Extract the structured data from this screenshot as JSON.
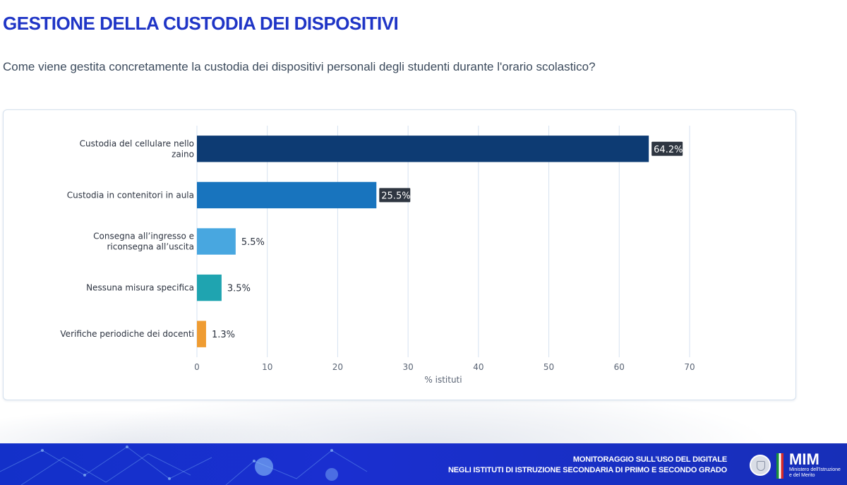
{
  "header": {
    "title": "GESTIONE DELLA CUSTODIA DEI DISPOSITIVI",
    "subtitle": "Come viene gestita concretamente la custodia dei dispositivi personali degli studenti durante l'orario scolastico?"
  },
  "chart_data": {
    "type": "bar",
    "orientation": "horizontal",
    "categories": [
      [
        "Custodia del cellulare nello",
        "zaino"
      ],
      [
        "Custodia in contenitori in aula"
      ],
      [
        "Consegna all’ingresso e",
        "riconsegna all’uscita"
      ],
      [
        "Nessuna misura specifica"
      ],
      [
        "Verifiche periodiche dei docenti"
      ]
    ],
    "values": [
      64.2,
      25.5,
      5.5,
      3.5,
      1.3
    ],
    "value_labels": [
      "64.2%",
      "25.5%",
      "5.5%",
      "3.5%",
      "1.3%"
    ],
    "colors": [
      "#0d3b73",
      "#1874be",
      "#48a7e0",
      "#1fa4b0",
      "#ef9c32"
    ],
    "xlabel": "% istituti",
    "xlim": [
      0,
      70
    ],
    "xticks": [
      0,
      10,
      20,
      30,
      40,
      50,
      60,
      70
    ],
    "grid": true
  },
  "footer": {
    "line1": "MONITORAGGIO SULL’USO DEL DIGITALE",
    "line2": "NEGLI ISTITUTI DI ISTRUZIONE SECONDARIA DI PRIMO E SECONDO GRADO",
    "logo_mark": "MIM",
    "logo_sub1": "Ministero dell'Istruzione",
    "logo_sub2": "e del Merito"
  }
}
